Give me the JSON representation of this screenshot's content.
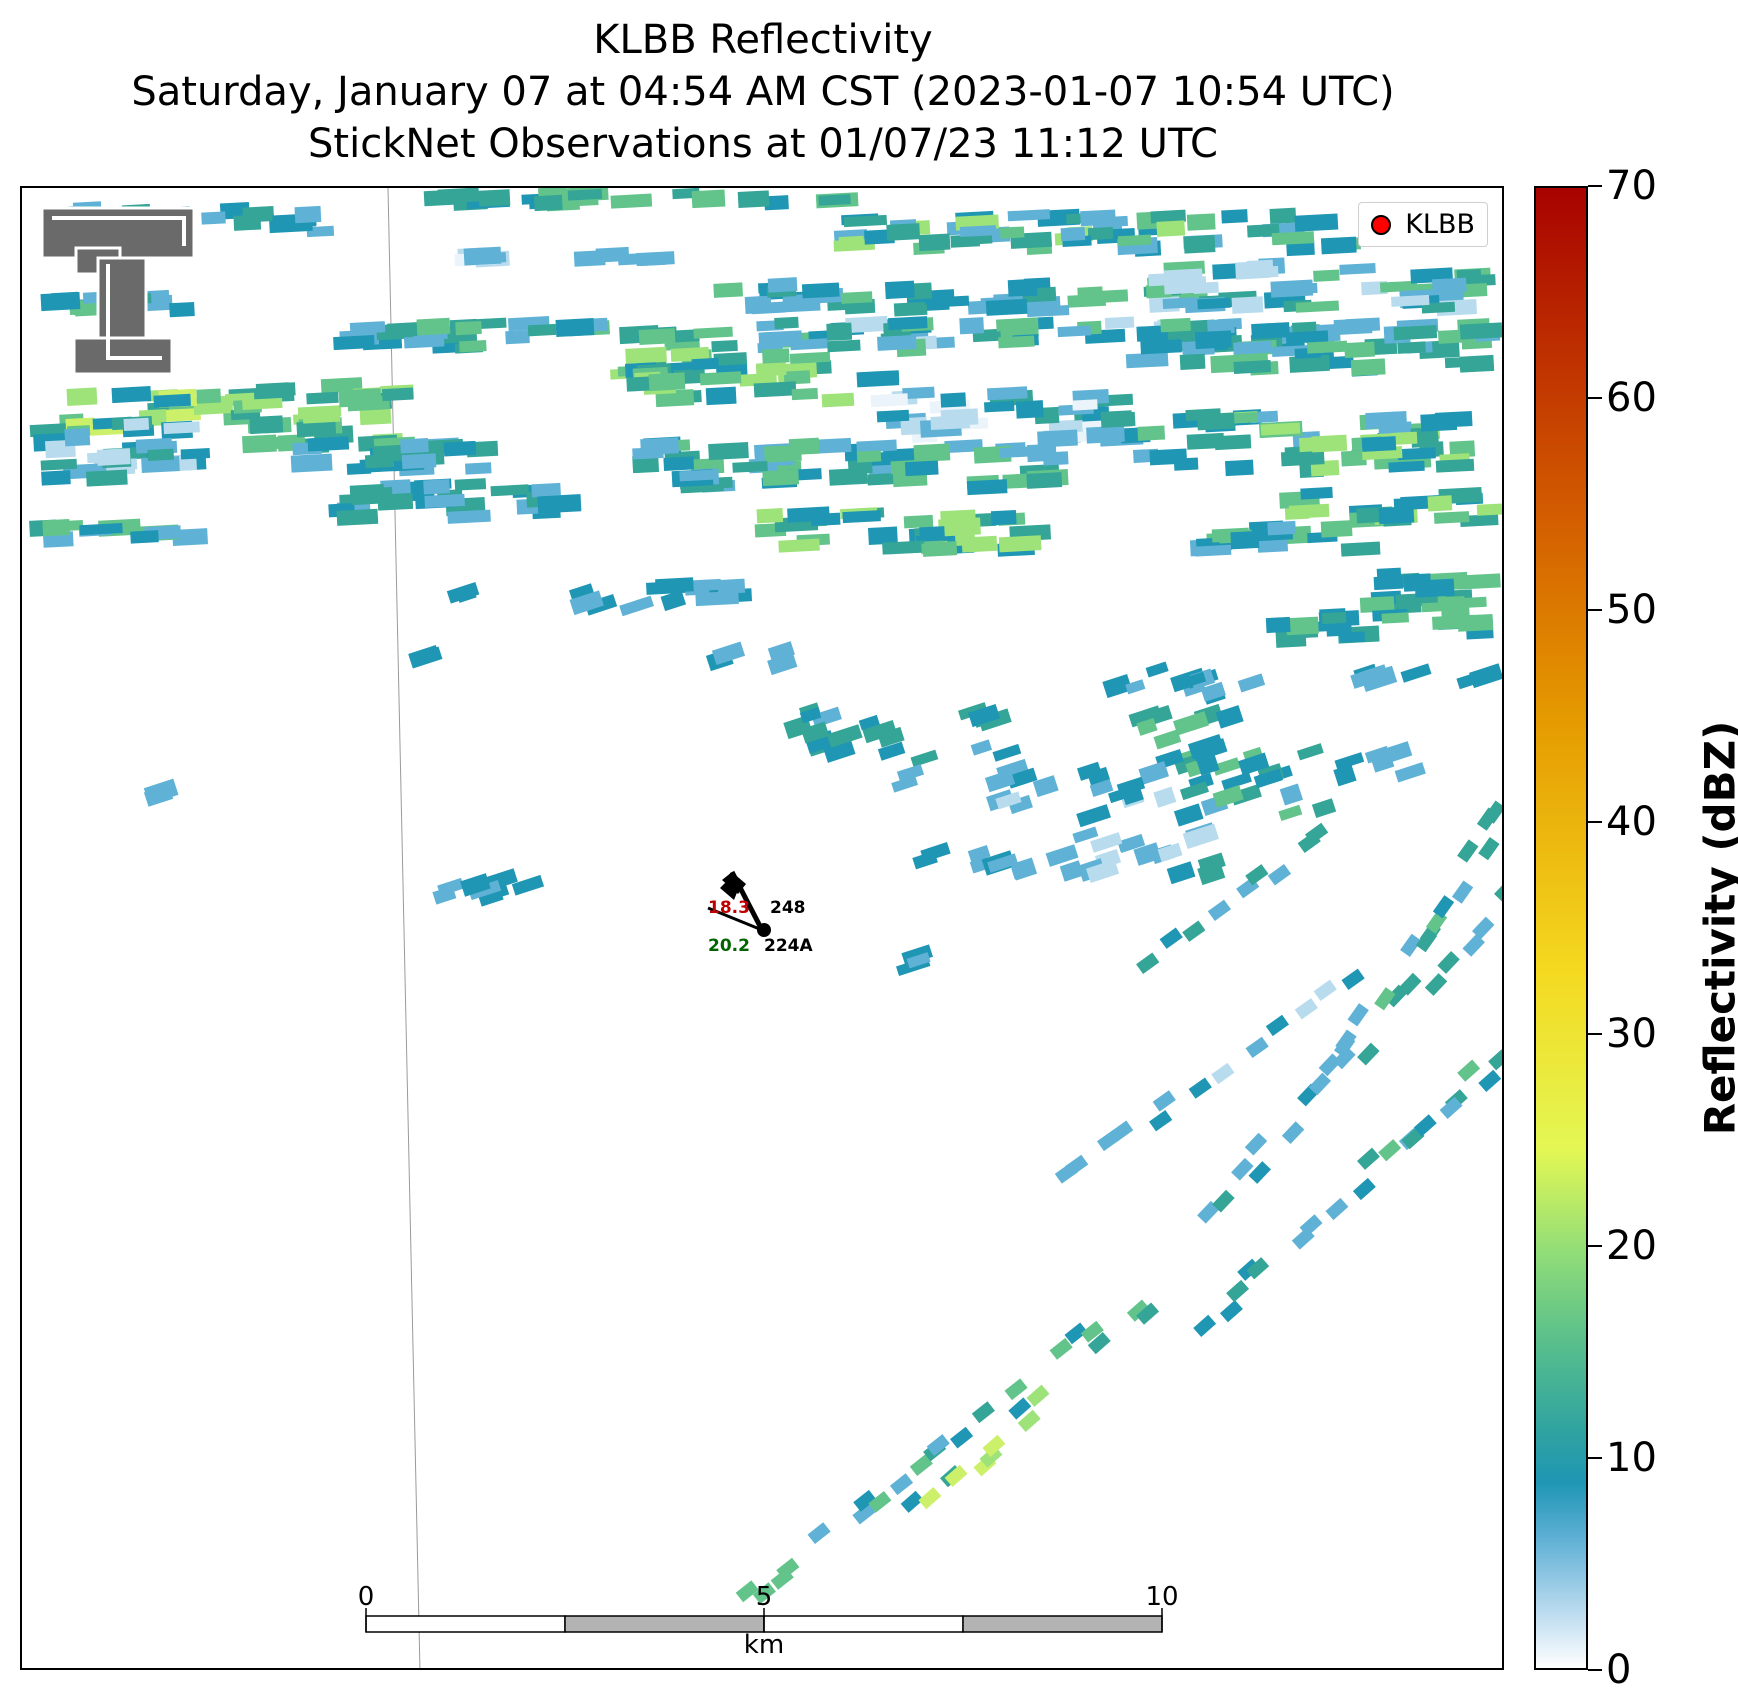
{
  "title": {
    "line1": "KLBB Reflectivity",
    "line2": "Saturday, January 07 at 04:54 AM CST (2023-01-07 10:54 UTC)",
    "line3": "StickNet Observations at 01/07/23 11:12 UTC"
  },
  "legend": {
    "label": "KLBB",
    "marker_color": "#ff0000"
  },
  "colorbar": {
    "label": "Reflectivity (dBZ)",
    "ticks": [
      "0",
      "10",
      "20",
      "30",
      "40",
      "50",
      "60",
      "70"
    ],
    "range": [
      0,
      70
    ]
  },
  "scale_bar": {
    "ticks": [
      "0",
      "5",
      "10"
    ],
    "unit": "km"
  },
  "stations": [
    {
      "id": "248",
      "temperature": "18.3",
      "temperature_color": "#c00000"
    },
    {
      "id": "224A",
      "dewpoint": "20.2",
      "dewpoint_color": "#006400"
    }
  ],
  "colors": {
    "very_light": "#eaf4fa",
    "light_blue": "#b8dcee",
    "mid_blue": "#5fb2d6",
    "teal": "#1f96b4",
    "sea_green": "#34a596",
    "green": "#62c48a",
    "light_green": "#9ee27a",
    "yellow_green": "#cdf06a"
  },
  "logo": {
    "name": "texas-tech-double-t",
    "color": "#6a6a6a"
  }
}
